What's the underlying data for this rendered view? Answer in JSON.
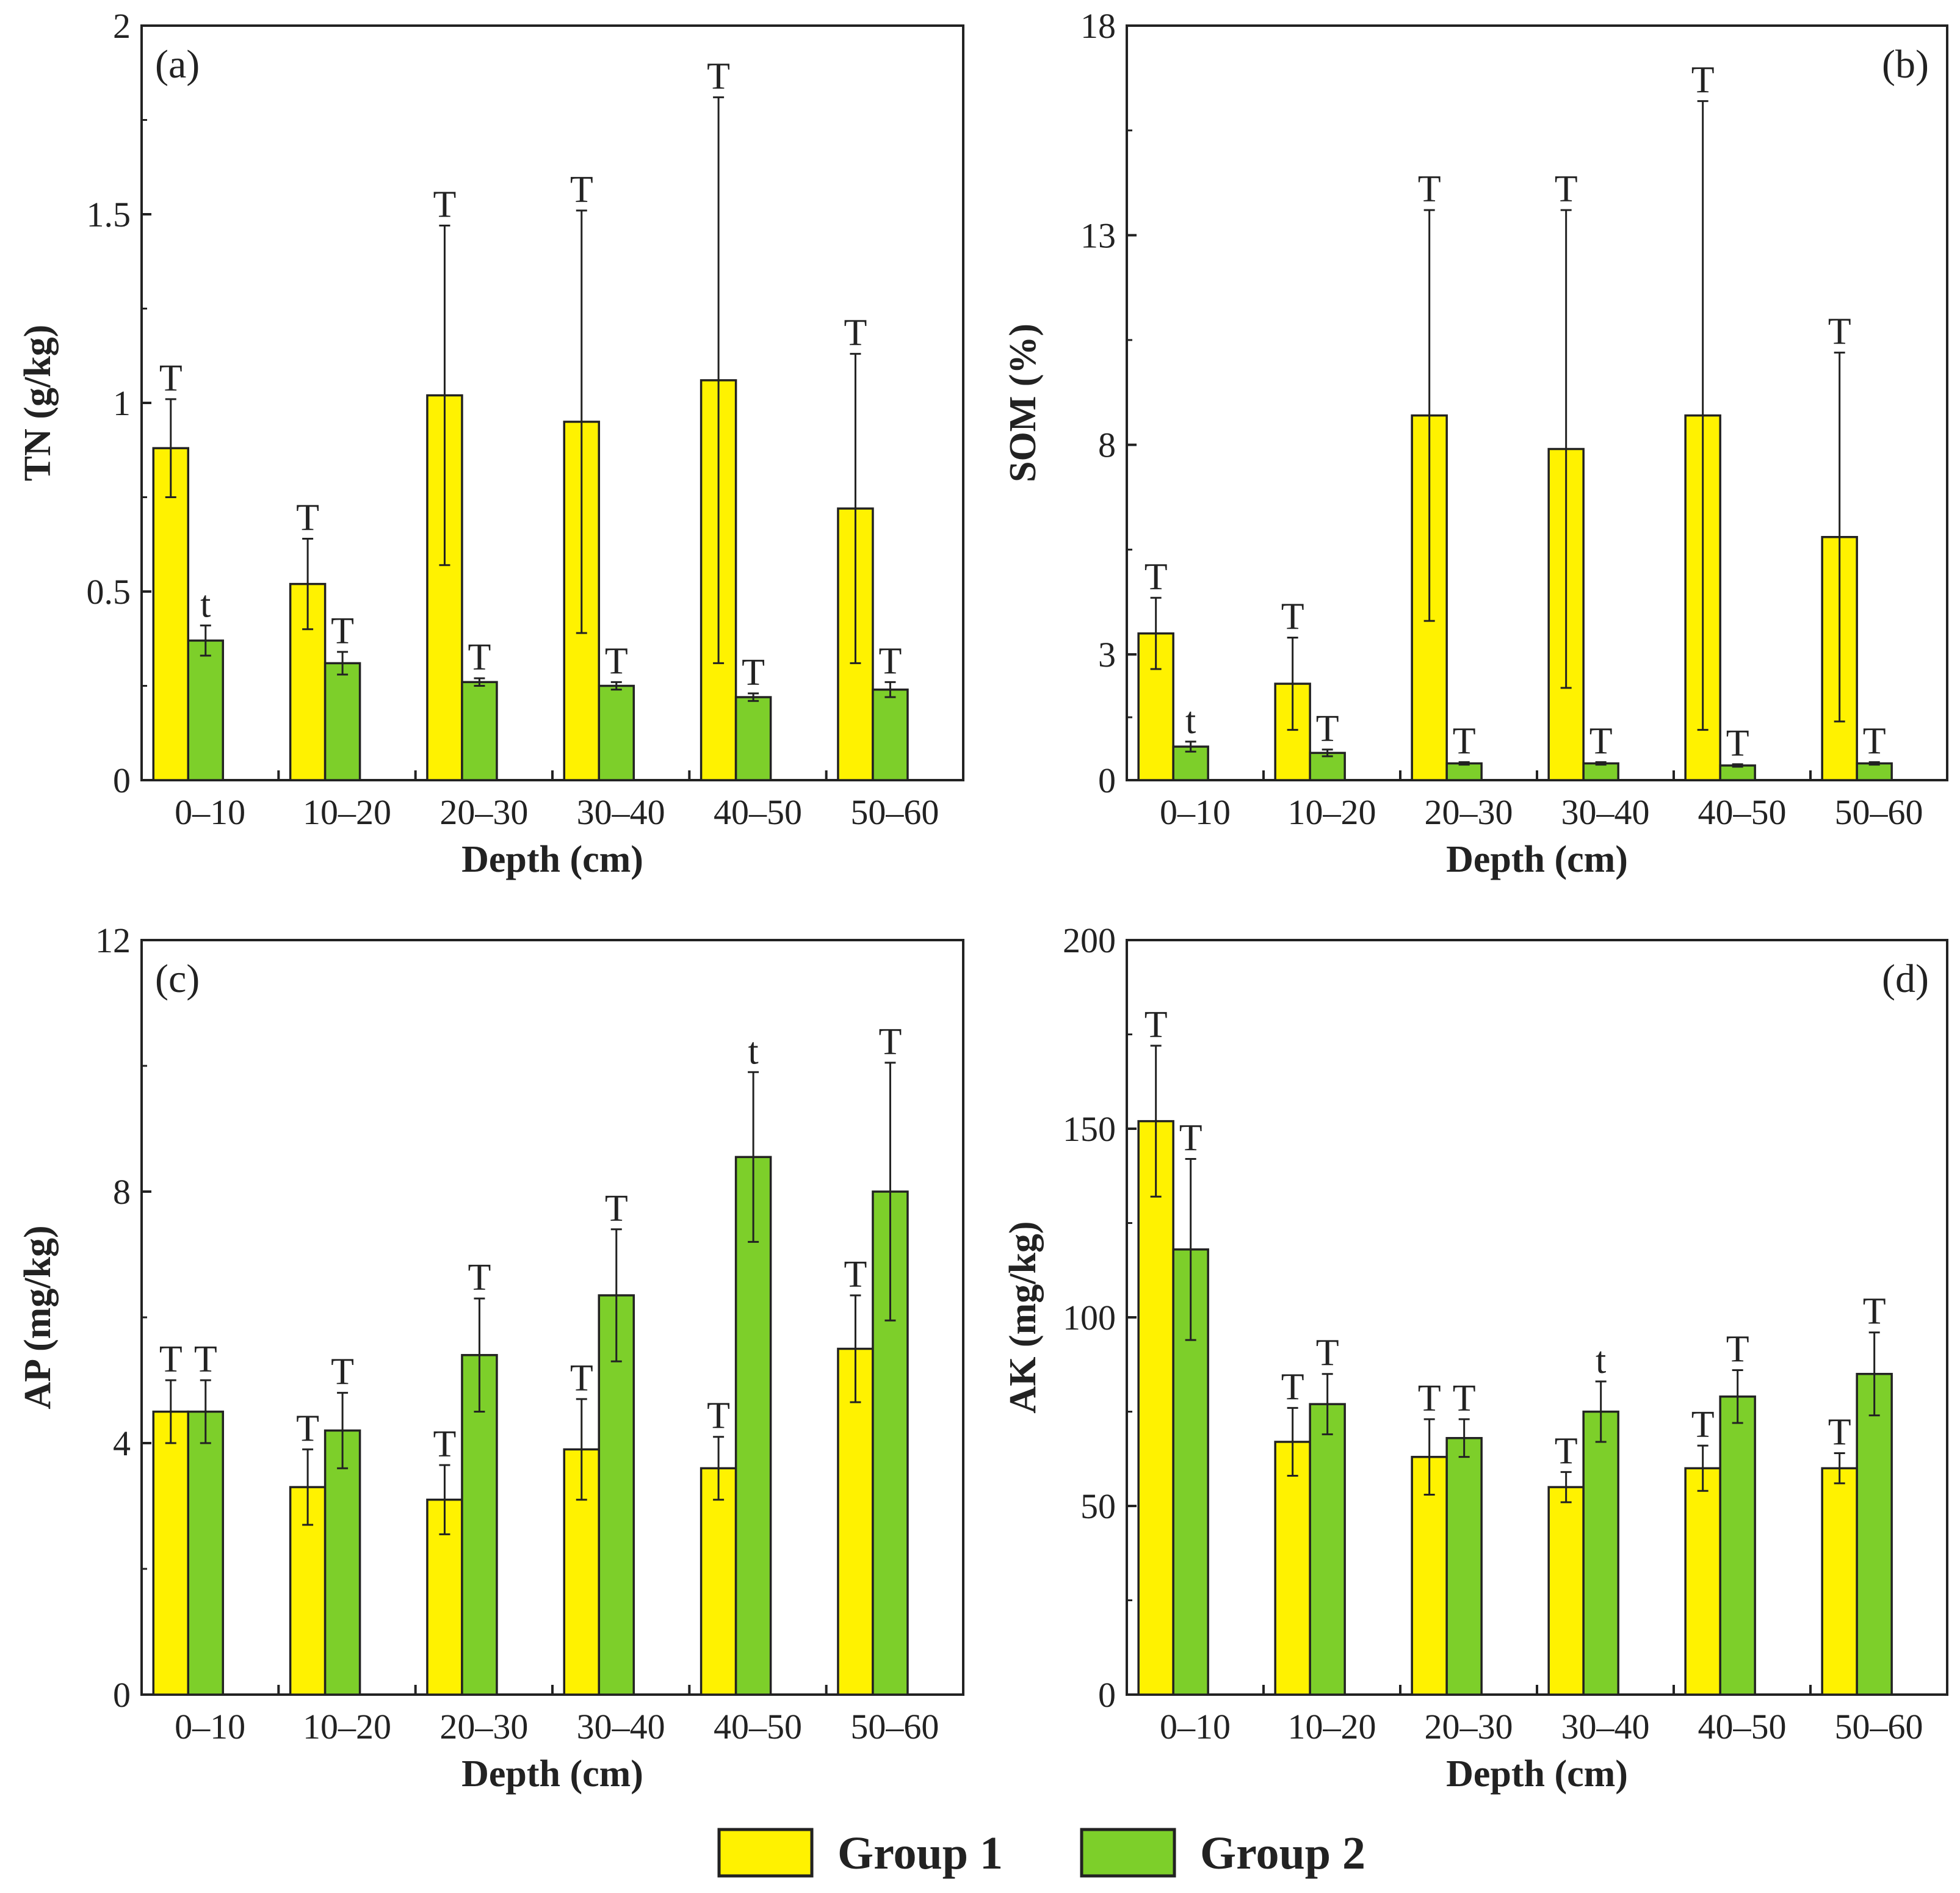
{
  "colors": {
    "group1": "#FFF200",
    "group2": "#7DCF2A",
    "stroke": "#222222"
  },
  "legend": {
    "group1": "Group 1",
    "group2": "Group 2"
  },
  "chart_data": [
    {
      "id": "a",
      "type": "bar",
      "panel_label": "(a)",
      "panel_label_position": "top-left",
      "ylabel": "TN (g/kg)",
      "xlabel": "Depth (cm)",
      "ylim": [
        0,
        2
      ],
      "yticks": [
        0,
        0.5,
        1,
        1.5,
        2
      ],
      "ytick_labels": [
        "0",
        "0.5",
        "1",
        "1.5",
        "2"
      ],
      "categories": [
        "0–10",
        "10–20",
        "20–30",
        "30–40",
        "40–50",
        "50–60"
      ],
      "series": [
        {
          "name": "Group 1",
          "values": [
            0.88,
            0.52,
            1.02,
            0.95,
            1.06,
            0.72
          ],
          "error": [
            0.13,
            0.12,
            0.45,
            0.56,
            0.75,
            0.41
          ],
          "sig": [
            "T",
            "T",
            "T",
            "T",
            "T",
            "T"
          ]
        },
        {
          "name": "Group 2",
          "values": [
            0.37,
            0.31,
            0.26,
            0.25,
            0.22,
            0.24
          ],
          "error": [
            0.04,
            0.03,
            0.01,
            0.01,
            0.01,
            0.02
          ],
          "sig": [
            "t",
            "T",
            "T",
            "T",
            "T",
            "T"
          ]
        }
      ]
    },
    {
      "id": "b",
      "type": "bar",
      "panel_label": "(b)",
      "panel_label_position": "top-right",
      "ylabel": "SOM (%)",
      "xlabel": "Depth (cm)",
      "ylim": [
        0,
        18
      ],
      "yticks": [
        0,
        3,
        8,
        13,
        18
      ],
      "ytick_labels": [
        "0",
        "3",
        "8",
        "13",
        "18"
      ],
      "categories": [
        "0–10",
        "10–20",
        "20–30",
        "30–40",
        "40–50",
        "50–60"
      ],
      "series": [
        {
          "name": "Group 1",
          "values": [
            3.5,
            2.3,
            8.7,
            7.9,
            8.7,
            5.8
          ],
          "error": [
            0.85,
            1.1,
            4.9,
            5.7,
            7.5,
            4.4
          ],
          "sig": [
            "T",
            "T",
            "T",
            "T",
            "T",
            "T"
          ]
        },
        {
          "name": "Group 2",
          "values": [
            0.8,
            0.65,
            0.4,
            0.4,
            0.35,
            0.4
          ],
          "error": [
            0.12,
            0.08,
            0.03,
            0.03,
            0.03,
            0.03
          ],
          "sig": [
            "t",
            "T",
            "T",
            "T",
            "T",
            "T"
          ]
        }
      ]
    },
    {
      "id": "c",
      "type": "bar",
      "panel_label": "(c)",
      "panel_label_position": "top-left",
      "ylabel": "AP (mg/kg)",
      "xlabel": "Depth (cm)",
      "ylim": [
        0,
        12
      ],
      "yticks": [
        0,
        4,
        8,
        12
      ],
      "ytick_labels": [
        "0",
        "4",
        "8",
        "12"
      ],
      "categories": [
        "0–10",
        "10–20",
        "20–30",
        "30–40",
        "40–50",
        "50–60"
      ],
      "series": [
        {
          "name": "Group 1",
          "values": [
            4.5,
            3.3,
            3.1,
            3.9,
            3.6,
            5.5
          ],
          "error": [
            0.5,
            0.6,
            0.55,
            0.8,
            0.5,
            0.85
          ],
          "sig": [
            "T",
            "T",
            "T",
            "T",
            "T",
            "T"
          ]
        },
        {
          "name": "Group 2",
          "values": [
            4.5,
            4.2,
            5.4,
            6.35,
            8.55,
            8.0
          ],
          "error": [
            0.5,
            0.6,
            0.9,
            1.05,
            1.35,
            2.05
          ],
          "sig": [
            "T",
            "T",
            "T",
            "T",
            "t",
            "T"
          ]
        }
      ]
    },
    {
      "id": "d",
      "type": "bar",
      "panel_label": "(d)",
      "panel_label_position": "top-right",
      "ylabel": "AK (mg/kg)",
      "xlabel": "Depth (cm)",
      "ylim": [
        0,
        200
      ],
      "yticks": [
        0,
        50,
        100,
        150,
        200
      ],
      "ytick_labels": [
        "0",
        "50",
        "100",
        "150",
        "200"
      ],
      "categories": [
        "0–10",
        "10–20",
        "20–30",
        "30–40",
        "40–50",
        "50–60"
      ],
      "series": [
        {
          "name": "Group 1",
          "values": [
            152,
            67,
            63,
            55,
            60,
            60
          ],
          "error": [
            20,
            9,
            10,
            4,
            6,
            4
          ],
          "sig": [
            "T",
            "T",
            "T",
            "T",
            "T",
            "T"
          ]
        },
        {
          "name": "Group 2",
          "values": [
            118,
            77,
            68,
            75,
            79,
            85
          ],
          "error": [
            24,
            8,
            5,
            8,
            7,
            11
          ],
          "sig": [
            "T",
            "T",
            "T",
            "t",
            "T",
            "T"
          ]
        }
      ]
    }
  ]
}
